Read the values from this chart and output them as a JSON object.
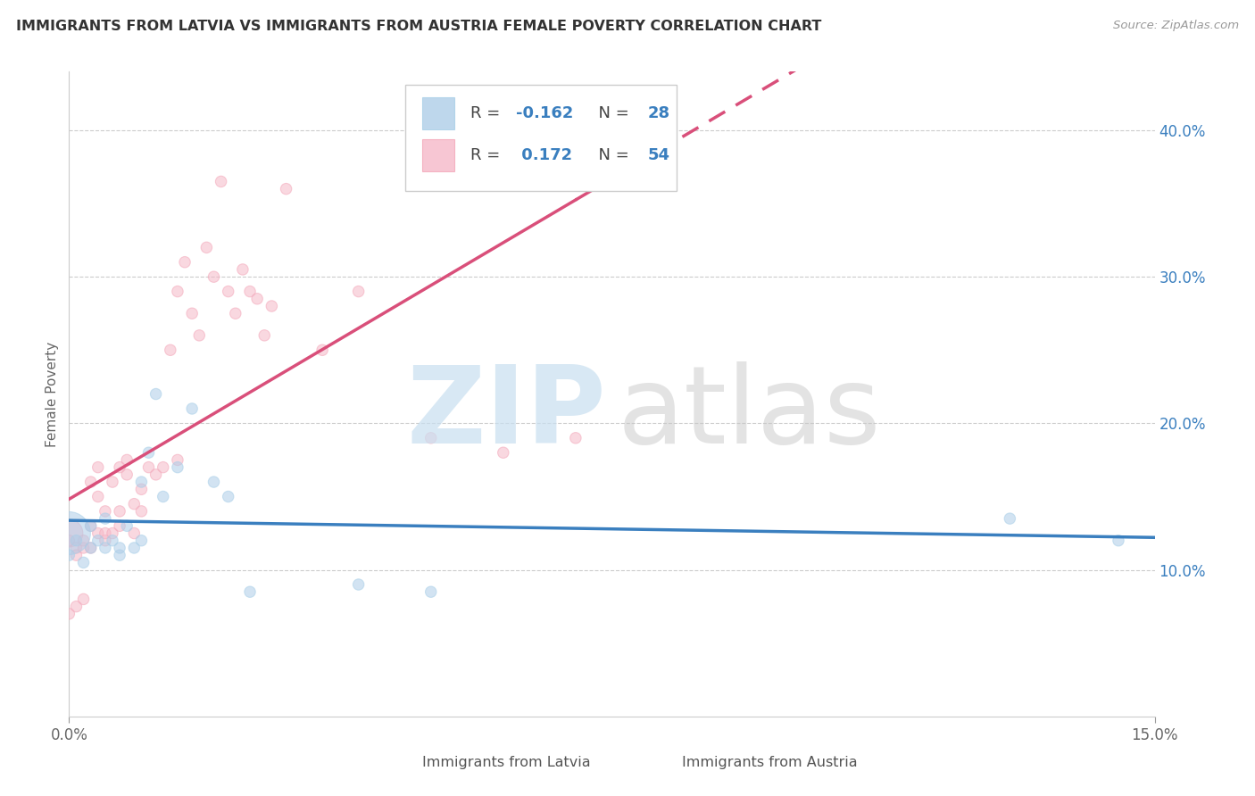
{
  "title": "IMMIGRANTS FROM LATVIA VS IMMIGRANTS FROM AUSTRIA FEMALE POVERTY CORRELATION CHART",
  "source": "Source: ZipAtlas.com",
  "ylabel": "Female Poverty",
  "right_yticks": [
    "40.0%",
    "30.0%",
    "20.0%",
    "10.0%"
  ],
  "right_ytick_vals": [
    0.4,
    0.3,
    0.2,
    0.1
  ],
  "xlim": [
    0.0,
    0.15
  ],
  "ylim": [
    0.0,
    0.44
  ],
  "blue_color": "#a8cfe8",
  "pink_color": "#f4a7b9",
  "blue_fill": "#aecde8",
  "pink_fill": "#f5b8c8",
  "blue_line_color": "#3a7fbf",
  "pink_line_color": "#d94f7a",
  "blue_line_dash_color": "#aacde8",
  "bg_color": "#ffffff",
  "grid_color": "#cccccc",
  "border_color": "#cccccc",
  "latvia_x": [
    0.0,
    0.0,
    0.001,
    0.002,
    0.003,
    0.003,
    0.004,
    0.005,
    0.005,
    0.006,
    0.007,
    0.007,
    0.008,
    0.009,
    0.01,
    0.01,
    0.011,
    0.012,
    0.013,
    0.015,
    0.017,
    0.02,
    0.022,
    0.025,
    0.04,
    0.05,
    0.13,
    0.145
  ],
  "latvia_y": [
    0.125,
    0.11,
    0.12,
    0.105,
    0.115,
    0.13,
    0.12,
    0.115,
    0.135,
    0.12,
    0.11,
    0.115,
    0.13,
    0.115,
    0.12,
    0.16,
    0.18,
    0.22,
    0.15,
    0.17,
    0.21,
    0.16,
    0.15,
    0.085,
    0.09,
    0.085,
    0.135,
    0.12
  ],
  "latvia_sizes": [
    1200,
    80,
    80,
    80,
    80,
    80,
    80,
    80,
    80,
    80,
    80,
    80,
    80,
    80,
    80,
    80,
    80,
    80,
    80,
    80,
    80,
    80,
    80,
    80,
    80,
    80,
    80,
    80
  ],
  "austria_x": [
    0.0,
    0.0,
    0.0,
    0.001,
    0.001,
    0.001,
    0.002,
    0.002,
    0.002,
    0.003,
    0.003,
    0.003,
    0.004,
    0.004,
    0.004,
    0.005,
    0.005,
    0.005,
    0.006,
    0.006,
    0.007,
    0.007,
    0.007,
    0.008,
    0.008,
    0.009,
    0.009,
    0.01,
    0.01,
    0.011,
    0.012,
    0.013,
    0.014,
    0.015,
    0.015,
    0.016,
    0.017,
    0.018,
    0.019,
    0.02,
    0.021,
    0.022,
    0.023,
    0.024,
    0.025,
    0.026,
    0.027,
    0.028,
    0.03,
    0.035,
    0.04,
    0.05,
    0.06,
    0.07
  ],
  "austria_y": [
    0.125,
    0.12,
    0.07,
    0.115,
    0.11,
    0.075,
    0.115,
    0.12,
    0.08,
    0.115,
    0.13,
    0.16,
    0.15,
    0.17,
    0.125,
    0.12,
    0.125,
    0.14,
    0.16,
    0.125,
    0.13,
    0.14,
    0.17,
    0.165,
    0.175,
    0.125,
    0.145,
    0.14,
    0.155,
    0.17,
    0.165,
    0.17,
    0.25,
    0.175,
    0.29,
    0.31,
    0.275,
    0.26,
    0.32,
    0.3,
    0.365,
    0.29,
    0.275,
    0.305,
    0.29,
    0.285,
    0.26,
    0.28,
    0.36,
    0.25,
    0.29,
    0.19,
    0.18,
    0.19
  ],
  "austria_sizes": [
    500,
    80,
    80,
    80,
    80,
    80,
    80,
    80,
    80,
    80,
    80,
    80,
    80,
    80,
    80,
    80,
    80,
    80,
    80,
    80,
    80,
    80,
    80,
    80,
    80,
    80,
    80,
    80,
    80,
    80,
    80,
    80,
    80,
    80,
    80,
    80,
    80,
    80,
    80,
    80,
    80,
    80,
    80,
    80,
    80,
    80,
    80,
    80,
    80,
    80,
    80,
    80,
    80,
    80
  ],
  "latvia_reg": [
    -0.162,
    0.125
  ],
  "austria_reg": [
    0.172,
    0.12
  ],
  "watermark_zip_color": "#c8dff0",
  "watermark_atlas_color": "#c8c8c8"
}
